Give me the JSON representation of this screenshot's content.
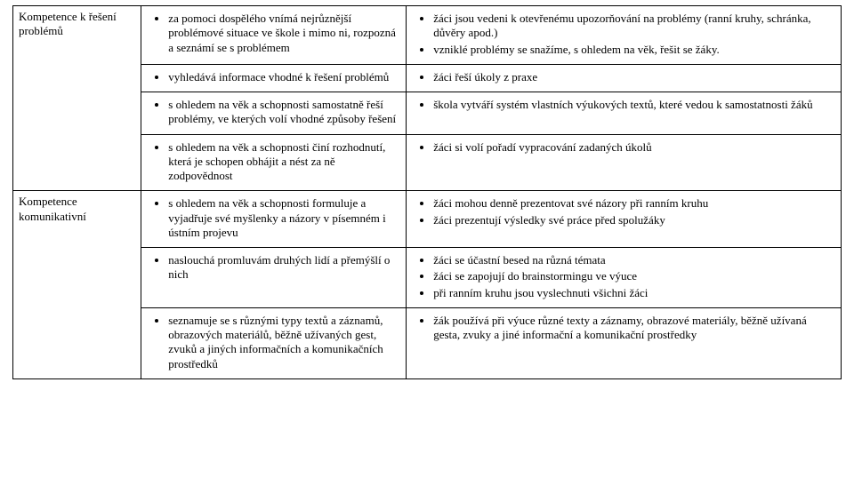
{
  "rows": [
    {
      "label": "Kompetence k řešení problémů",
      "left": [
        "za pomoci dospělého vnímá nejrůznější problémové situace ve škole i mimo ni, rozpozná a seznámí se s problémem"
      ],
      "right": [
        "žáci jsou vedeni k otevřenému upozorňování na problémy (ranní kruhy, schránka, důvěry apod.)",
        "vzniklé problémy se snažíme, s ohledem na věk, řešit se žáky."
      ]
    },
    {
      "left": [
        "vyhledává informace vhodné k řešení problémů"
      ],
      "right": [
        "žáci řeší úkoly z praxe"
      ]
    },
    {
      "left": [
        "s ohledem na věk a schopnosti samostatně řeší problémy, ve kterých volí vhodné způsoby řešení"
      ],
      "right": [
        "škola vytváří systém vlastních výukových textů, které vedou k samostatnosti žáků"
      ]
    },
    {
      "left": [
        "s ohledem na věk a schopnosti činí rozhodnutí, která je schopen obhájit a nést za ně zodpovědnost"
      ],
      "right": [
        "žáci si volí pořadí vypracování zadaných úkolů"
      ]
    },
    {
      "label": "Kompetence komunikativní",
      "left": [
        "s ohledem na věk a schopnosti formuluje a vyjadřuje své myšlenky a názory v písemném i ústním projevu"
      ],
      "right": [
        "žáci mohou denně prezentovat své názory při ranním kruhu",
        "žáci prezentují výsledky své práce před spolužáky"
      ]
    },
    {
      "left": [
        "naslouchá promluvám druhých lidí a přemýšlí o nich"
      ],
      "right": [
        "žáci se účastní besed na různá témata",
        "žáci se zapojují do brainstormingu ve výuce",
        "při ranním kruhu jsou vyslechnuti všichni žáci"
      ]
    },
    {
      "left": [
        "seznamuje se s různými typy textů a záznamů, obrazových materiálů, běžně užívaných gest, zvuků a jiných informačních a komunikačních prostředků"
      ],
      "right": [
        "žák používá při výuce různé texty a záznamy, obrazové materiály, běžně užívaná gesta, zvuky a jiné informační a komunikační prostředky"
      ]
    }
  ]
}
